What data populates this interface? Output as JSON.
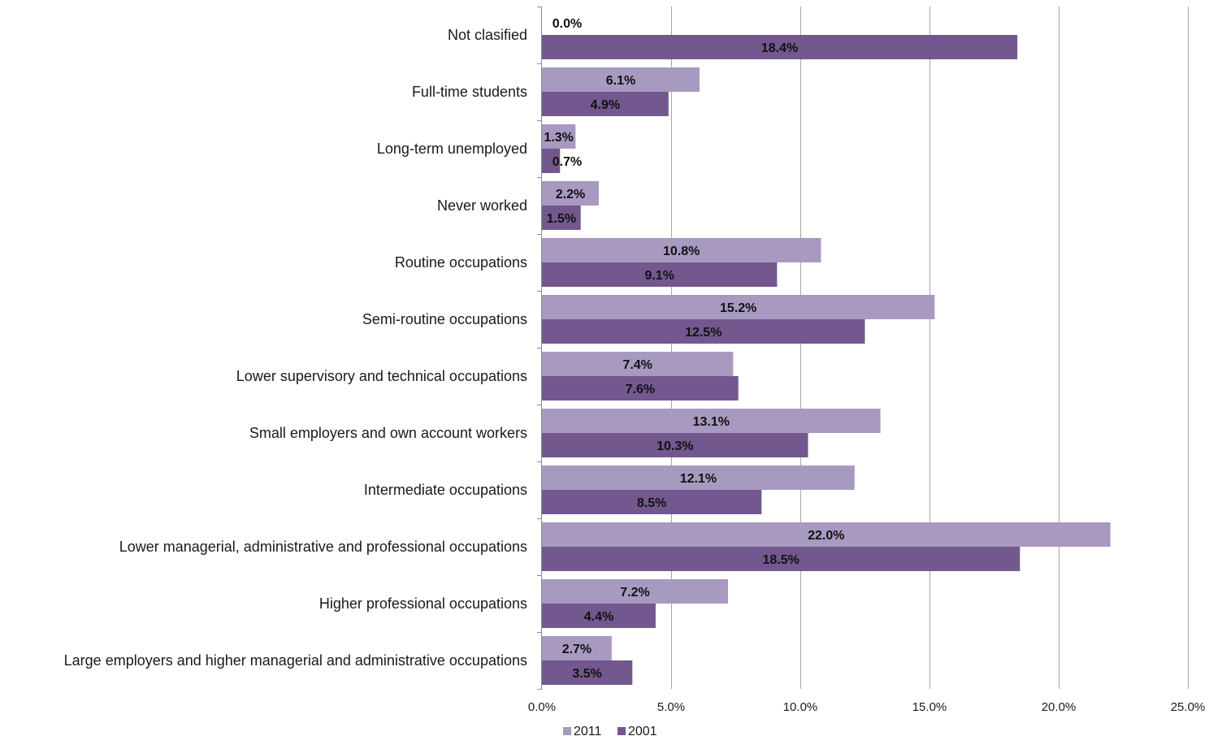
{
  "chart_data": {
    "type": "bar",
    "orientation": "horizontal",
    "title": "",
    "xlabel": "",
    "ylabel": "",
    "categories": [
      "Not clasified",
      "Full-time students",
      "Long-term unemployed",
      "Never worked",
      "Routine occupations",
      "Semi-routine occupations",
      "Lower supervisory and technical occupations",
      "Small employers and own account workers",
      "Intermediate occupations",
      "Lower managerial, administrative and professional occupations",
      "Higher professional occupations",
      "Large employers and higher managerial and administrative occupations"
    ],
    "series": [
      {
        "name": "2011",
        "color": "#a899c1",
        "values": [
          0.0,
          6.1,
          1.3,
          2.2,
          10.8,
          15.2,
          7.4,
          13.1,
          12.1,
          22.0,
          7.2,
          2.7
        ],
        "labels": [
          "0.0%",
          "6.1%",
          "1.3%",
          "2.2%",
          "10.8%",
          "15.2%",
          "7.4%",
          "13.1%",
          "12.1%",
          "22.0%",
          "7.2%",
          "2.7%"
        ]
      },
      {
        "name": "2001",
        "color": "#72588e",
        "values": [
          18.4,
          4.9,
          0.7,
          1.5,
          9.1,
          12.5,
          7.6,
          10.3,
          8.5,
          18.5,
          4.4,
          3.5
        ],
        "labels": [
          "18.4%",
          "4.9%",
          "0.7%",
          "1.5%",
          "9.1%",
          "12.5%",
          "7.6%",
          "10.3%",
          "8.5%",
          "18.5%",
          "4.4%",
          "3.5%"
        ]
      }
    ],
    "xlim": [
      0,
      25
    ],
    "x_ticks": [
      0,
      5,
      10,
      15,
      20,
      25
    ],
    "x_tick_labels": [
      "0.0%",
      "5.0%",
      "10.0%",
      "15.0%",
      "20.0%",
      "25.0%"
    ],
    "grid": "vertical",
    "legend_position": "bottom"
  }
}
